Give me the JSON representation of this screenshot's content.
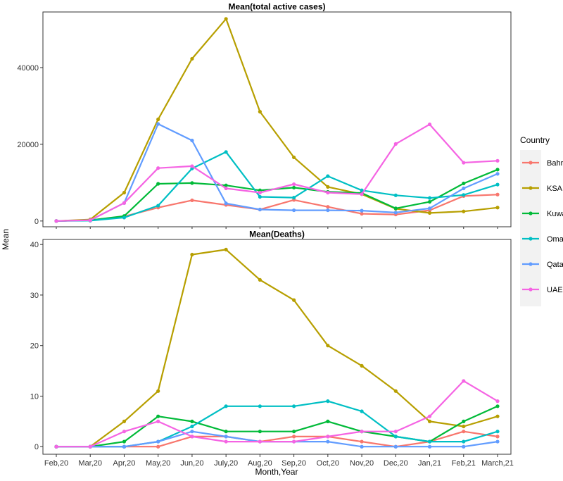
{
  "chart_data": {
    "type": "line",
    "xlabel": "Month,Year",
    "ylabel": "Mean",
    "categories": [
      "Feb,20",
      "Mar,20",
      "Apr,20",
      "May,20",
      "Jun,20",
      "July,20",
      "Aug,20",
      "Sep,20",
      "Oct,20",
      "Nov,20",
      "Dec,20",
      "Jan,21",
      "Feb,21",
      "March,21"
    ],
    "legend": {
      "title": "Country",
      "placement": "right",
      "entries": [
        {
          "name": "Bahrain",
          "color": "#F8766D"
        },
        {
          "name": "KSA",
          "color": "#B79F00"
        },
        {
          "name": "Kuwait",
          "color": "#00BA38"
        },
        {
          "name": "Oman",
          "color": "#00BFC4"
        },
        {
          "name": "Qatar",
          "color": "#619CFF"
        },
        {
          "name": "UAE",
          "color": "#F564E3"
        }
      ]
    },
    "panels": [
      {
        "title": "Mean(total active cases)",
        "ylim": [
          -1500,
          54500
        ],
        "yticks": [
          0,
          20000,
          40000
        ],
        "series": [
          {
            "name": "Bahrain",
            "color": "#F8766D",
            "values": [
              0,
              200,
              1200,
              3500,
              5400,
              4200,
              3000,
              5500,
              3700,
              1900,
              1700,
              2800,
              6500,
              6900
            ]
          },
          {
            "name": "KSA",
            "color": "#B79F00",
            "values": [
              0,
              400,
              7400,
              26500,
              42300,
              52700,
              28500,
              16600,
              8900,
              7000,
              3200,
              2100,
              2500,
              3500
            ]
          },
          {
            "name": "Kuwait",
            "color": "#00BA38",
            "values": [
              0,
              200,
              1300,
              9700,
              9900,
              9300,
              8000,
              8700,
              7600,
              7300,
              3300,
              5000,
              9800,
              13400
            ]
          },
          {
            "name": "Oman",
            "color": "#00BFC4",
            "values": [
              0,
              100,
              900,
              4000,
              13700,
              18000,
              6300,
              6100,
              11700,
              8000,
              6700,
              6000,
              6800,
              9500
            ]
          },
          {
            "name": "Qatar",
            "color": "#619CFF",
            "values": [
              0,
              200,
              4700,
              25300,
              21000,
              4600,
              3000,
              2800,
              2800,
              2700,
              2200,
              3300,
              8500,
              12300
            ]
          },
          {
            "name": "UAE",
            "color": "#F564E3",
            "values": [
              0,
              200,
              4700,
              13800,
              14300,
              8500,
              7400,
              9600,
              7400,
              7000,
              20100,
              25200,
              15200,
              15700
            ]
          }
        ]
      },
      {
        "title": "Mean(Deaths)",
        "ylim": [
          -1.5,
          41
        ],
        "yticks": [
          0,
          10,
          20,
          30,
          40
        ],
        "series": [
          {
            "name": "Bahrain",
            "color": "#F8766D",
            "values": [
              0,
              0,
              0,
              0,
              2,
              2,
              1,
              2,
              2,
              1,
              0,
              1,
              3,
              2
            ]
          },
          {
            "name": "KSA",
            "color": "#B79F00",
            "values": [
              0,
              0,
              5,
              11,
              38,
              39,
              33,
              29,
              20,
              16,
              11,
              5,
              4,
              6
            ]
          },
          {
            "name": "Kuwait",
            "color": "#00BA38",
            "values": [
              0,
              0,
              1,
              6,
              5,
              3,
              3,
              3,
              5,
              3,
              2,
              1,
              5,
              8
            ]
          },
          {
            "name": "Oman",
            "color": "#00BFC4",
            "values": [
              0,
              0,
              0,
              1,
              4,
              8,
              8,
              8,
              9,
              7,
              2,
              1,
              1,
              3
            ]
          },
          {
            "name": "Qatar",
            "color": "#619CFF",
            "values": [
              0,
              0,
              0,
              1,
              3,
              2,
              1,
              1,
              1,
              0,
              0,
              0,
              0,
              1
            ]
          },
          {
            "name": "UAE",
            "color": "#F564E3",
            "values": [
              0,
              0,
              3,
              5,
              2,
              1,
              1,
              1,
              2,
              3,
              3,
              6,
              13,
              9
            ]
          }
        ]
      }
    ]
  }
}
